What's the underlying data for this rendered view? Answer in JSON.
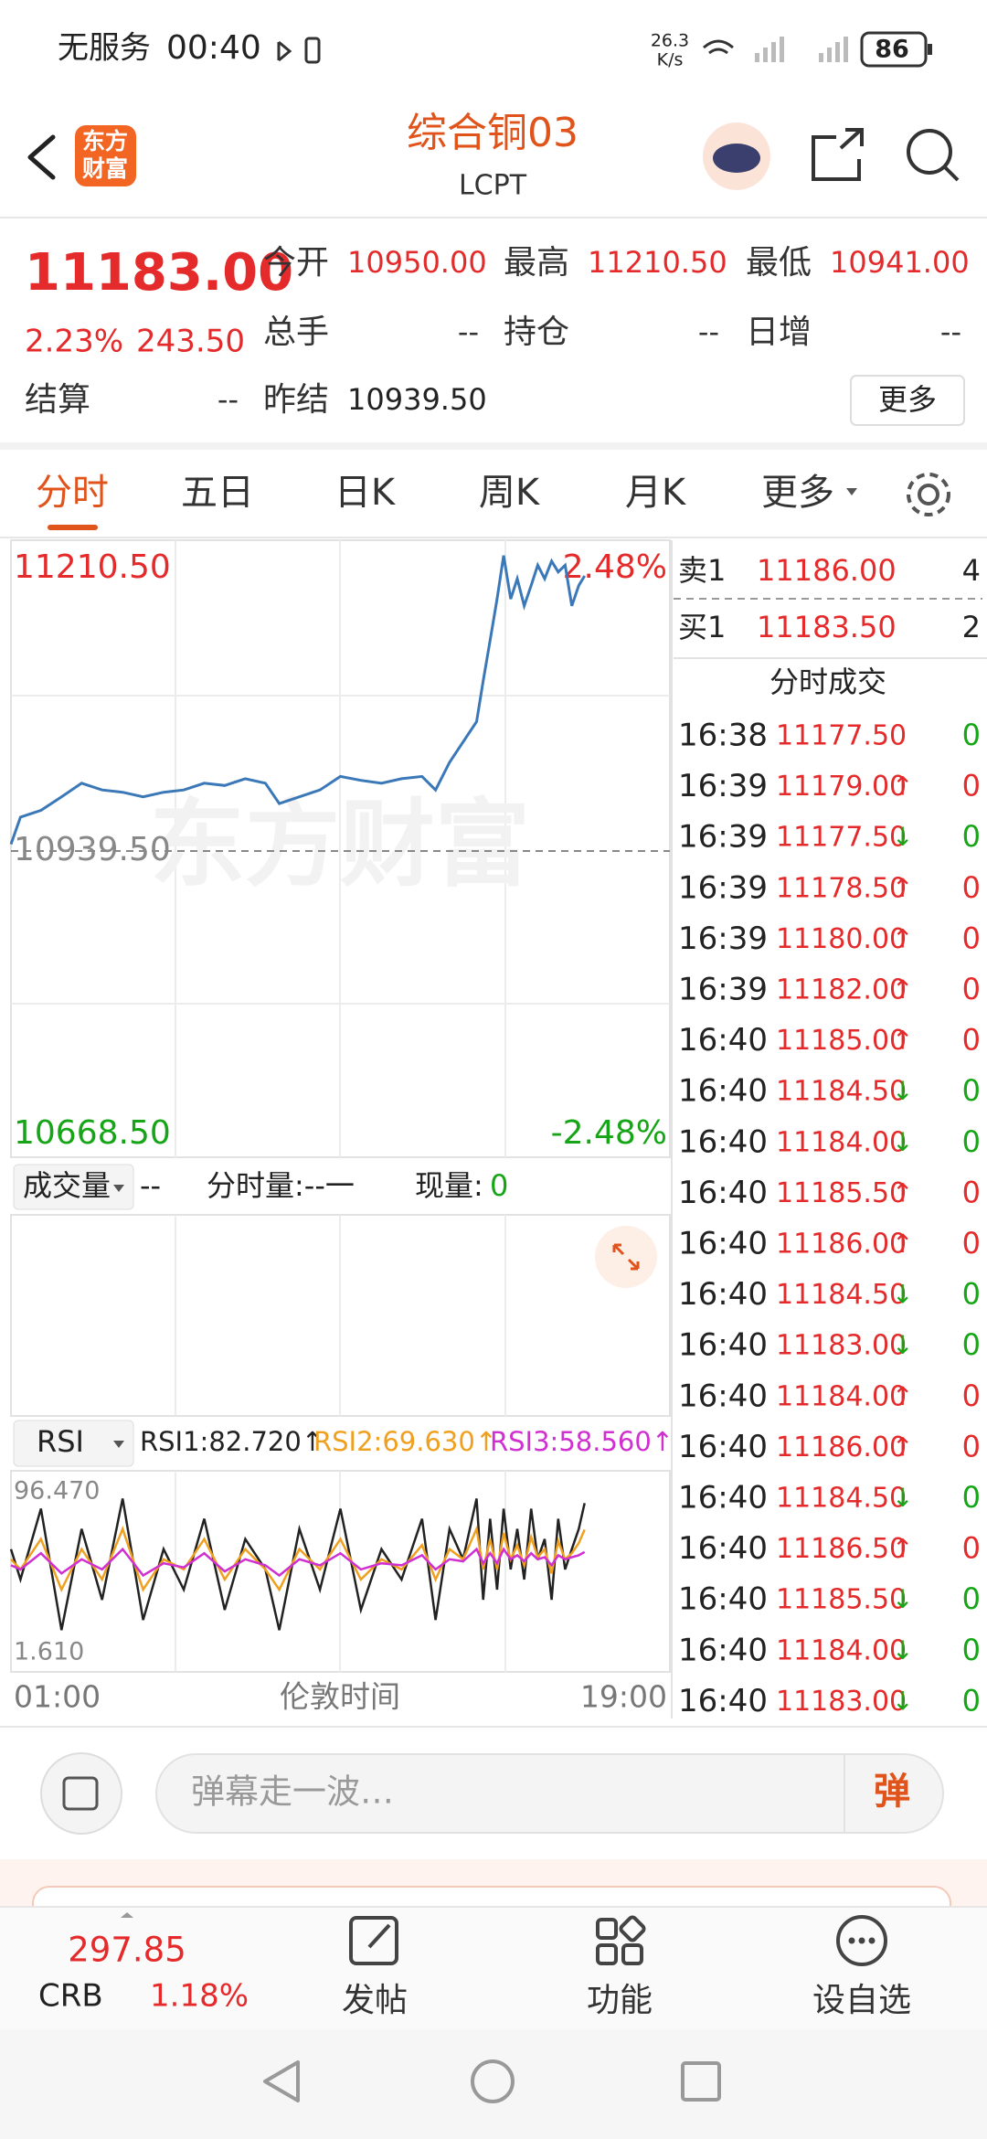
{
  "status_bar": {
    "carrier": "无服务",
    "time": "00:40",
    "speed": "26.3",
    "speed_unit": "K/s",
    "battery": "86"
  },
  "header": {
    "logo_line1": "东方",
    "logo_line2": "财富",
    "title": "综合铜03",
    "subtitle": "LCPT"
  },
  "quote": {
    "price": "11183.00",
    "change_pct": "2.23%",
    "change": "243.50",
    "fields": [
      {
        "label": "今开",
        "value": "10950.00"
      },
      {
        "label": "最高",
        "value": "11210.50"
      },
      {
        "label": "最低",
        "value": "10941.00"
      },
      {
        "label": "总手",
        "value": "--"
      },
      {
        "label": "持仓",
        "value": "--"
      },
      {
        "label": "日增",
        "value": "--"
      },
      {
        "label": "结算",
        "value": "--"
      },
      {
        "label": "昨结",
        "value": "10939.50"
      }
    ],
    "more": "更多"
  },
  "tabs": [
    "分时",
    "五日",
    "日K",
    "周K",
    "月K",
    "更多"
  ],
  "intraday_chart": {
    "type": "line",
    "color": "#3a78b8",
    "watermark": "东方财富",
    "x": [
      1.0,
      1.26,
      1.82,
      2.38,
      2.93,
      3.49,
      4.05,
      4.61,
      5.17,
      5.72,
      6.28,
      6.84,
      7.4,
      7.95,
      8.33,
      8.88,
      9.44,
      10.0,
      10.56,
      11.12,
      11.67,
      12.23,
      12.6,
      12.98,
      13.35,
      13.72,
      13.9,
      14.09,
      14.28,
      14.46,
      14.65,
      14.83,
      15.02,
      15.21,
      15.39,
      15.58,
      15.77,
      15.95,
      16.14,
      16.32,
      16.51,
      16.67
    ],
    "values": [
      10945.5,
      10969.5,
      10975.5,
      10987.5,
      10999.5,
      10993.5,
      10991.5,
      10987.5,
      10991.5,
      10993.5,
      10999.5,
      10997.5,
      11003.5,
      10999.5,
      10981.5,
      10987.5,
      10993.5,
      11005.5,
      11002.0,
      10999.5,
      11003.5,
      11005.5,
      10993.5,
      11018.0,
      11036.0,
      11054.0,
      11090.0,
      11126.0,
      11162.5,
      11201.0,
      11162.5,
      11180.5,
      11156.5,
      11174.5,
      11192.5,
      11180.5,
      11196.0,
      11186.5,
      11192.5,
      11156.5,
      11174.5,
      11183.0
    ],
    "xlim": [
      1,
      19
    ],
    "xticks": [
      {
        "value": 1,
        "label": "01:00"
      },
      {
        "value": 19,
        "label": "19:00"
      }
    ],
    "x_label": "伦敦时间",
    "ylim": [
      10668.5,
      11210.5
    ],
    "yticks": [
      {
        "value": 10668.5,
        "label": "10668.50"
      },
      {
        "value": 10939.5,
        "label": "10939.50"
      },
      {
        "value": 11210.5,
        "label": "11210.50"
      }
    ],
    "y2lim": [
      -2.48,
      2.48
    ],
    "y2ticks": [
      {
        "value": 2.48,
        "label": "2.48%"
      },
      {
        "value": -2.48,
        "label": "-2.48%"
      }
    ]
  },
  "volume_panel": {
    "selector": "成交量",
    "value": "--",
    "period_volume": "分时量:--一",
    "current_label": "现量:",
    "current_value": "0"
  },
  "rsi_chart": {
    "type": "line",
    "selector": "RSI",
    "ylim": [
      1.61,
      96.47
    ],
    "yticks": [
      {
        "value": 96.47,
        "label": "96.470"
      },
      {
        "value": 1.61,
        "label": "1.610"
      }
    ],
    "x": [
      1.0,
      1.26,
      1.82,
      2.38,
      2.93,
      3.49,
      4.05,
      4.61,
      5.17,
      5.72,
      6.28,
      6.84,
      7.4,
      7.95,
      8.33,
      8.88,
      9.44,
      10.0,
      10.56,
      11.12,
      11.67,
      12.23,
      12.6,
      12.98,
      13.35,
      13.72,
      13.9,
      14.09,
      14.28,
      14.46,
      14.65,
      14.83,
      15.02,
      15.21,
      15.39,
      15.58,
      15.77,
      15.95,
      16.14,
      16.32,
      16.51,
      16.67
    ],
    "series": [
      {
        "label": "RSI1:82.720↑",
        "color": "#222222",
        "values": [
          60,
          45,
          80,
          20,
          70,
          35,
          85,
          25,
          60,
          40,
          75,
          30,
          65,
          50,
          20,
          70,
          40,
          80,
          30,
          60,
          45,
          75,
          25,
          70,
          55,
          85,
          35,
          75,
          40,
          80,
          50,
          70,
          45,
          80,
          55,
          65,
          35,
          75,
          50,
          60,
          70,
          82.72
        ]
      },
      {
        "label": "RSI2:69.630↑",
        "color": "#f0a020",
        "values": [
          55,
          50,
          65,
          40,
          60,
          45,
          70,
          40,
          55,
          50,
          65,
          45,
          60,
          50,
          40,
          60,
          50,
          65,
          45,
          55,
          50,
          62,
          45,
          60,
          55,
          70,
          50,
          65,
          50,
          68,
          55,
          62,
          52,
          66,
          56,
          60,
          48,
          64,
          55,
          58,
          63,
          69.63
        ]
      },
      {
        "label": "RSI3:58.560↑",
        "color": "#d030d0",
        "values": [
          52,
          50,
          58,
          48,
          55,
          50,
          60,
          47,
          53,
          51,
          58,
          49,
          55,
          52,
          47,
          55,
          52,
          58,
          50,
          53,
          52,
          57,
          50,
          55,
          54,
          60,
          53,
          58,
          53,
          60,
          55,
          57,
          54,
          58,
          55,
          56,
          52,
          57,
          55,
          56,
          57,
          58.56
        ]
      }
    ]
  },
  "order_book": {
    "ask": {
      "label": "卖1",
      "price": "11186.00",
      "volume": "4"
    },
    "bid": {
      "label": "买1",
      "price": "11183.50",
      "volume": "2"
    },
    "trades_title": "分时成交",
    "trades": [
      {
        "time": "16:38",
        "price": "11177.50",
        "volume": "0"
      },
      {
        "time": "16:39",
        "price": "11179.00",
        "dir": "↑",
        "volume": "0"
      },
      {
        "time": "16:39",
        "price": "11177.50",
        "dir": "↓",
        "volume": "0"
      },
      {
        "time": "16:39",
        "price": "11178.50",
        "dir": "↑",
        "volume": "0"
      },
      {
        "time": "16:39",
        "price": "11180.00",
        "dir": "↑",
        "volume": "0"
      },
      {
        "time": "16:39",
        "price": "11182.00",
        "dir": "↑",
        "volume": "0"
      },
      {
        "time": "16:40",
        "price": "11185.00",
        "dir": "↑",
        "volume": "0"
      },
      {
        "time": "16:40",
        "price": "11184.50",
        "dir": "↓",
        "volume": "0"
      },
      {
        "time": "16:40",
        "price": "11184.00",
        "dir": "↓",
        "volume": "0"
      },
      {
        "time": "16:40",
        "price": "11185.50",
        "dir": "↑",
        "volume": "0"
      },
      {
        "time": "16:40",
        "price": "11186.00",
        "dir": "↑",
        "volume": "0"
      },
      {
        "time": "16:40",
        "price": "11184.50",
        "dir": "↓",
        "volume": "0"
      },
      {
        "time": "16:40",
        "price": "11183.00",
        "dir": "↓",
        "volume": "0"
      },
      {
        "time": "16:40",
        "price": "11184.00",
        "dir": "↑",
        "volume": "0"
      },
      {
        "time": "16:40",
        "price": "11186.00",
        "dir": "↑",
        "volume": "0"
      },
      {
        "time": "16:40",
        "price": "11184.50",
        "dir": "↓",
        "volume": "0"
      },
      {
        "time": "16:40",
        "price": "11186.50",
        "dir": "↑",
        "volume": "0"
      },
      {
        "time": "16:40",
        "price": "11185.50",
        "dir": "↓",
        "volume": "0"
      },
      {
        "time": "16:40",
        "price": "11184.00",
        "dir": "↓",
        "volume": "0"
      },
      {
        "time": "16:40",
        "price": "11183.00",
        "dir": "↓",
        "volume": "0"
      }
    ]
  },
  "comment_bar": {
    "placeholder": "弹幕走一波…",
    "button": "弹"
  },
  "bottom_nav": {
    "index_value": "297.85",
    "index_name": "CRB",
    "index_change": "1.18%",
    "items": [
      "发帖",
      "功能",
      "设自选"
    ]
  }
}
